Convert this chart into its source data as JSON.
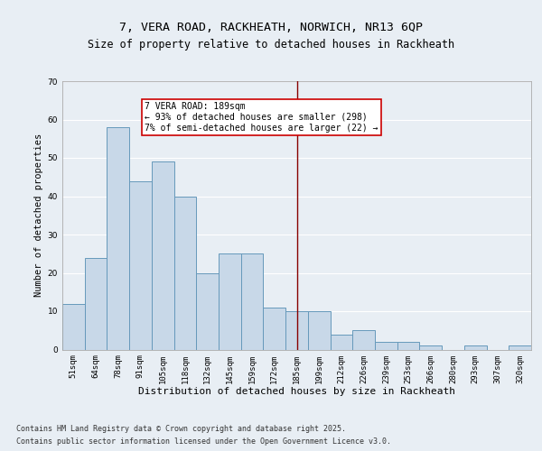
{
  "title_line1": "7, VERA ROAD, RACKHEATH, NORWICH, NR13 6QP",
  "title_line2": "Size of property relative to detached houses in Rackheath",
  "xlabel": "Distribution of detached houses by size in Rackheath",
  "ylabel": "Number of detached properties",
  "categories": [
    "51sqm",
    "64sqm",
    "78sqm",
    "91sqm",
    "105sqm",
    "118sqm",
    "132sqm",
    "145sqm",
    "159sqm",
    "172sqm",
    "185sqm",
    "199sqm",
    "212sqm",
    "226sqm",
    "239sqm",
    "253sqm",
    "266sqm",
    "280sqm",
    "293sqm",
    "307sqm",
    "320sqm"
  ],
  "values": [
    12,
    24,
    58,
    44,
    49,
    40,
    20,
    25,
    25,
    11,
    10,
    10,
    4,
    5,
    2,
    2,
    1,
    0,
    1,
    0,
    1
  ],
  "bar_color": "#c8d8e8",
  "bar_edge_color": "#6699bb",
  "highlight_line_color": "#880000",
  "annotation_text": "7 VERA ROAD: 189sqm\n← 93% of detached houses are smaller (298)\n7% of semi-detached houses are larger (22) →",
  "annotation_box_color": "#ffffff",
  "annotation_box_edge": "#cc0000",
  "ylim": [
    0,
    70
  ],
  "yticks": [
    0,
    10,
    20,
    30,
    40,
    50,
    60,
    70
  ],
  "bg_color": "#e8eef4",
  "plot_bg_color": "#e8eef4",
  "footer_line1": "Contains HM Land Registry data © Crown copyright and database right 2025.",
  "footer_line2": "Contains public sector information licensed under the Open Government Licence v3.0.",
  "title_fontsize": 9.5,
  "subtitle_fontsize": 8.5,
  "xlabel_fontsize": 8,
  "ylabel_fontsize": 7.5,
  "tick_fontsize": 6.5,
  "annot_fontsize": 7,
  "footer_fontsize": 6
}
